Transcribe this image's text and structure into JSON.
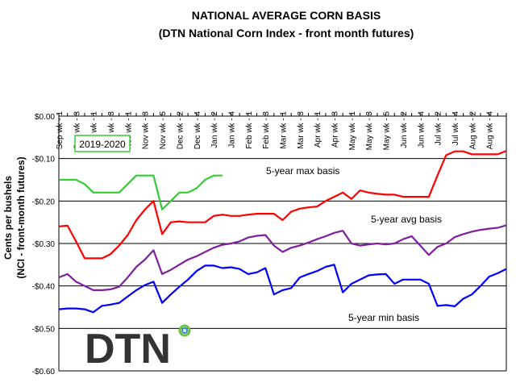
{
  "chart_data": {
    "type": "line",
    "title": "NATIONAL AVERAGE CORN BASIS",
    "subtitle": "(DTN National Corn Index - front month futures)",
    "ylabel": "Cents per bushels",
    "ylabel2": "(NCI - front-month futures)",
    "ylim": [
      -0.6,
      0.0
    ],
    "yticks": [
      0.0,
      -0.1,
      -0.2,
      -0.3,
      -0.4,
      -0.5,
      -0.6
    ],
    "ytick_labels": [
      "$0.00",
      "-$0.10",
      "-$0.20",
      "-$0.30",
      "-$0.40",
      "-$0.50",
      "-$0.60"
    ],
    "grid": true,
    "x_labels": [
      "Sep wk - 1",
      "Sep wk - 3",
      "Oct wk - 1",
      "Oct wk - 3",
      "Nov wk - 1",
      "Nov wk - 3",
      "Nov wk - 5",
      "Dec wk - 2",
      "Dec wk - 4",
      "Jan wk - 2",
      "Jan wk - 4",
      "Feb wk - 1",
      "Feb wk - 3",
      "Mar wk - 1",
      "Mar wk - 3",
      "Apr wk - 1",
      "Apr wk - 3",
      "May wk - 1",
      "May wk - 3",
      "May wk - 5",
      "Jun wk - 2",
      "Jun wk - 4",
      "Jul wk - 2",
      "Jul wk - 4",
      "Aug wk - 2",
      "Aug wk - 4"
    ],
    "x_count": 53,
    "series": [
      {
        "name": "2019-2020",
        "color": "#33cc33",
        "label_box": true,
        "values": [
          -0.15,
          -0.15,
          -0.15,
          -0.16,
          -0.18,
          -0.18,
          -0.18,
          -0.18,
          -0.16,
          -0.14,
          -0.14,
          -0.14,
          -0.22,
          -0.2,
          -0.18,
          -0.18,
          -0.17,
          -0.15,
          -0.14,
          -0.14
        ]
      },
      {
        "name": "5-year max basis",
        "color": "#ff0000",
        "values": [
          -0.26,
          -0.258,
          -0.295,
          -0.335,
          -0.335,
          -0.335,
          -0.325,
          -0.305,
          -0.28,
          -0.245,
          -0.22,
          -0.2,
          -0.278,
          -0.25,
          -0.248,
          -0.25,
          -0.25,
          -0.25,
          -0.235,
          -0.232,
          -0.235,
          -0.235,
          -0.232,
          -0.23,
          -0.23,
          -0.23,
          -0.245,
          -0.225,
          -0.218,
          -0.215,
          -0.213,
          -0.2,
          -0.19,
          -0.18,
          -0.195,
          -0.175,
          -0.18,
          -0.183,
          -0.185,
          -0.185,
          -0.19,
          -0.19,
          -0.19,
          -0.19,
          -0.14,
          -0.092,
          -0.083,
          -0.083,
          -0.09,
          -0.09,
          -0.09,
          -0.09,
          -0.082
        ]
      },
      {
        "name": "5-year avg basis",
        "color": "#7f1f9f",
        "values": [
          -0.38,
          -0.372,
          -0.39,
          -0.4,
          -0.41,
          -0.41,
          -0.408,
          -0.402,
          -0.38,
          -0.355,
          -0.338,
          -0.316,
          -0.372,
          -0.362,
          -0.35,
          -0.338,
          -0.33,
          -0.32,
          -0.31,
          -0.303,
          -0.3,
          -0.295,
          -0.286,
          -0.282,
          -0.28,
          -0.305,
          -0.32,
          -0.31,
          -0.305,
          -0.298,
          -0.29,
          -0.283,
          -0.275,
          -0.27,
          -0.3,
          -0.305,
          -0.302,
          -0.3,
          -0.302,
          -0.3,
          -0.29,
          -0.283,
          -0.305,
          -0.327,
          -0.308,
          -0.3,
          -0.285,
          -0.278,
          -0.272,
          -0.268,
          -0.265,
          -0.263,
          -0.257
        ]
      },
      {
        "name": "5-year min basis",
        "color": "#0000ff",
        "values": [
          -0.455,
          -0.453,
          -0.453,
          -0.455,
          -0.462,
          -0.447,
          -0.444,
          -0.44,
          -0.425,
          -0.41,
          -0.398,
          -0.39,
          -0.44,
          -0.42,
          -0.402,
          -0.385,
          -0.365,
          -0.352,
          -0.352,
          -0.358,
          -0.356,
          -0.36,
          -0.372,
          -0.368,
          -0.358,
          -0.42,
          -0.41,
          -0.405,
          -0.38,
          -0.372,
          -0.365,
          -0.355,
          -0.35,
          -0.415,
          -0.395,
          -0.385,
          -0.375,
          -0.373,
          -0.372,
          -0.395,
          -0.385,
          -0.385,
          -0.385,
          -0.395,
          -0.447,
          -0.445,
          -0.448,
          -0.43,
          -0.42,
          -0.4,
          -0.378,
          -0.37,
          -0.36
        ]
      }
    ]
  },
  "logo": {
    "text": "DTN",
    "ring_color_outer": "#6fbf40",
    "ring_color_inner": "#2a8fd0"
  }
}
